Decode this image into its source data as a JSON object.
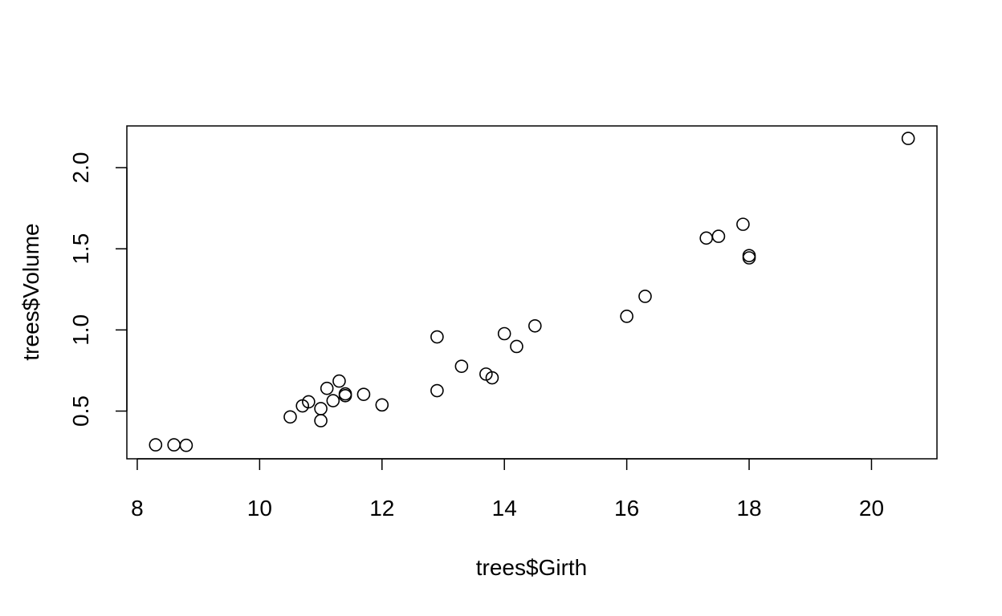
{
  "chart_data": {
    "type": "scatter",
    "title": "",
    "xlabel": "trees$Girth",
    "ylabel": "trees$Volume",
    "xlim": [
      7.83,
      21.07
    ],
    "ylim": [
      0.206,
      2.257
    ],
    "x_ticks": [
      8,
      10,
      12,
      14,
      16,
      18,
      20
    ],
    "x_tick_labels": [
      "8",
      "10",
      "12",
      "14",
      "16",
      "18",
      "20"
    ],
    "y_ticks": [
      0.5,
      1.0,
      1.5,
      2.0
    ],
    "y_tick_labels": [
      "0.5",
      "1.0",
      "1.5",
      "2.0"
    ],
    "grid": false,
    "marker": "open-circle",
    "colors": {
      "points": "#000000",
      "axes": "#000000",
      "background": "#ffffff"
    },
    "points": [
      {
        "x": 8.3,
        "y": 0.292
      },
      {
        "x": 8.6,
        "y": 0.292
      },
      {
        "x": 8.8,
        "y": 0.289
      },
      {
        "x": 10.5,
        "y": 0.464
      },
      {
        "x": 10.7,
        "y": 0.532
      },
      {
        "x": 10.8,
        "y": 0.557
      },
      {
        "x": 11.0,
        "y": 0.441
      },
      {
        "x": 11.0,
        "y": 0.515
      },
      {
        "x": 11.1,
        "y": 0.64
      },
      {
        "x": 11.2,
        "y": 0.564
      },
      {
        "x": 11.3,
        "y": 0.685
      },
      {
        "x": 11.4,
        "y": 0.595
      },
      {
        "x": 11.4,
        "y": 0.606
      },
      {
        "x": 11.7,
        "y": 0.603
      },
      {
        "x": 12.0,
        "y": 0.538
      },
      {
        "x": 12.9,
        "y": 0.626
      },
      {
        "x": 12.9,
        "y": 0.957
      },
      {
        "x": 13.3,
        "y": 0.776
      },
      {
        "x": 13.7,
        "y": 0.728
      },
      {
        "x": 13.8,
        "y": 0.705
      },
      {
        "x": 14.0,
        "y": 0.977
      },
      {
        "x": 14.2,
        "y": 0.898
      },
      {
        "x": 14.5,
        "y": 1.025
      },
      {
        "x": 16.0,
        "y": 1.084
      },
      {
        "x": 16.3,
        "y": 1.207
      },
      {
        "x": 17.3,
        "y": 1.566
      },
      {
        "x": 17.5,
        "y": 1.577
      },
      {
        "x": 17.9,
        "y": 1.651
      },
      {
        "x": 18.0,
        "y": 1.444
      },
      {
        "x": 18.0,
        "y": 1.458
      },
      {
        "x": 20.6,
        "y": 2.18
      }
    ]
  }
}
